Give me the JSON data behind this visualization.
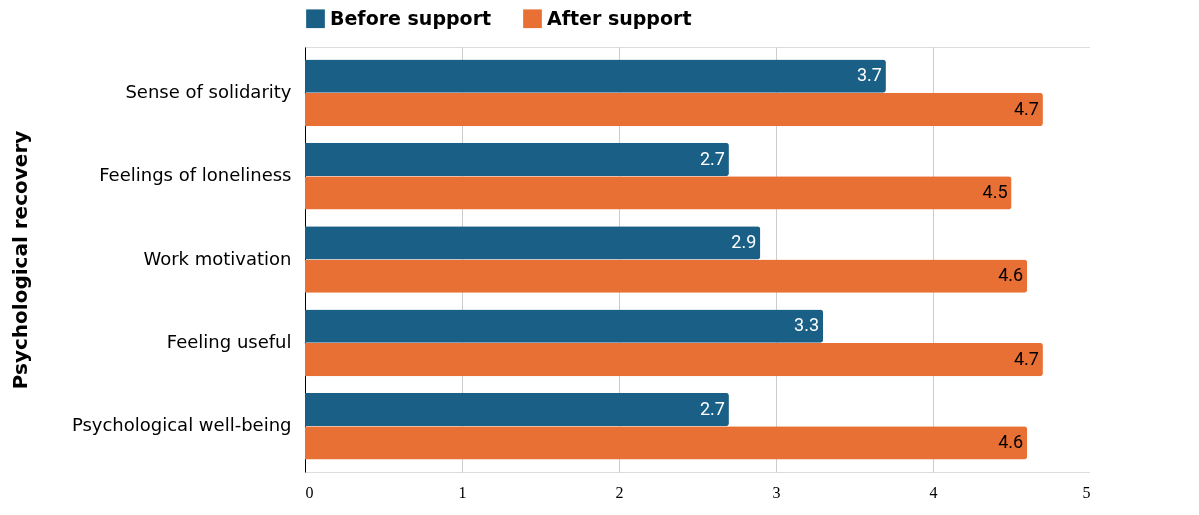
{
  "chart_data": {
    "type": "bar",
    "orientation": "horizontal",
    "ylabel": "Psychological recovery",
    "categories": [
      "Sense of solidarity",
      "Feelings of loneliness",
      "Work motivation",
      "Feeling useful",
      "Psychological well-being"
    ],
    "series": [
      {
        "name": "Before support",
        "color": "#1a5f85",
        "values": [
          3.7,
          2.7,
          2.9,
          3.3,
          2.7
        ]
      },
      {
        "name": "After support",
        "color": "#e87035",
        "values": [
          4.7,
          4.5,
          4.6,
          4.7,
          4.6
        ]
      }
    ],
    "xlim": [
      0,
      5
    ],
    "xticks": [
      0,
      1,
      2,
      3,
      4,
      5
    ],
    "grid": "x",
    "legend": "top",
    "data_labels": true
  }
}
